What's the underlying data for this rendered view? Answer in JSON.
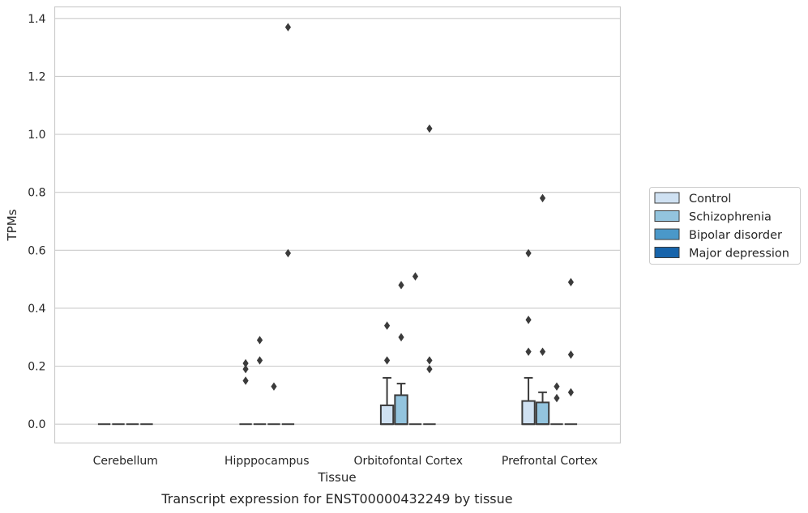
{
  "chart_data": {
    "type": "box",
    "caption": "Transcript expression for ENST00000432249 by tissue",
    "xlabel": "Tissue",
    "ylabel": "TPMs",
    "ylim": [
      -0.065,
      1.44
    ],
    "yticks": [
      0.0,
      0.2,
      0.4,
      0.6,
      0.8,
      1.0,
      1.2,
      1.4
    ],
    "ytick_labels": [
      "0.0",
      "0.2",
      "0.4",
      "0.6",
      "0.8",
      "1.0",
      "1.2",
      "1.4"
    ],
    "grid": true,
    "legend_position": "right",
    "categories": [
      "Cerebellum",
      "Hipppocampus",
      "Orbitofontal Cortex",
      "Prefrontal Cortex"
    ],
    "series": [
      {
        "name": "Control",
        "color": "#cfe1f2",
        "boxes": [
          {
            "q1": 0,
            "median": 0,
            "q3": 0,
            "whisker_low": 0,
            "whisker_high": 0,
            "outliers": []
          },
          {
            "q1": 0,
            "median": 0,
            "q3": 0,
            "whisker_low": 0,
            "whisker_high": 0,
            "outliers": [
              0.15,
              0.19,
              0.21
            ]
          },
          {
            "q1": 0,
            "median": 0,
            "q3": 0.065,
            "whisker_low": 0,
            "whisker_high": 0.16,
            "outliers": [
              0.22,
              0.34
            ]
          },
          {
            "q1": 0,
            "median": 0,
            "q3": 0.08,
            "whisker_low": 0,
            "whisker_high": 0.16,
            "outliers": [
              0.25,
              0.36,
              0.59
            ]
          }
        ]
      },
      {
        "name": "Schizophrenia",
        "color": "#93c4de",
        "boxes": [
          {
            "q1": 0,
            "median": 0,
            "q3": 0,
            "whisker_low": 0,
            "whisker_high": 0,
            "outliers": []
          },
          {
            "q1": 0,
            "median": 0,
            "q3": 0,
            "whisker_low": 0,
            "whisker_high": 0,
            "outliers": [
              0.22,
              0.29
            ]
          },
          {
            "q1": 0,
            "median": 0,
            "q3": 0.1,
            "whisker_low": 0,
            "whisker_high": 0.14,
            "outliers": [
              0.3,
              0.48
            ]
          },
          {
            "q1": 0,
            "median": 0,
            "q3": 0.075,
            "whisker_low": 0,
            "whisker_high": 0.11,
            "outliers": [
              0.25,
              0.78
            ]
          }
        ]
      },
      {
        "name": "Bipolar disorder",
        "color": "#4a98c9",
        "boxes": [
          {
            "q1": 0,
            "median": 0,
            "q3": 0,
            "whisker_low": 0,
            "whisker_high": 0,
            "outliers": []
          },
          {
            "q1": 0,
            "median": 0,
            "q3": 0,
            "whisker_low": 0,
            "whisker_high": 0,
            "outliers": [
              0.13
            ]
          },
          {
            "q1": 0,
            "median": 0,
            "q3": 0,
            "whisker_low": 0,
            "whisker_high": 0,
            "outliers": [
              0.51
            ]
          },
          {
            "q1": 0,
            "median": 0,
            "q3": 0,
            "whisker_low": 0,
            "whisker_high": 0,
            "outliers": [
              0.09,
              0.13
            ]
          }
        ]
      },
      {
        "name": "Major depression",
        "color": "#1764ab",
        "boxes": [
          {
            "q1": 0,
            "median": 0,
            "q3": 0,
            "whisker_low": 0,
            "whisker_high": 0,
            "outliers": []
          },
          {
            "q1": 0,
            "median": 0,
            "q3": 0,
            "whisker_low": 0,
            "whisker_high": 0,
            "outliers": [
              0.59,
              1.37
            ]
          },
          {
            "q1": 0,
            "median": 0,
            "q3": 0,
            "whisker_low": 0,
            "whisker_high": 0,
            "outliers": [
              0.19,
              0.22,
              1.02
            ]
          },
          {
            "q1": 0,
            "median": 0,
            "q3": 0,
            "whisker_low": 0,
            "whisker_high": 0,
            "outliers": [
              0.11,
              0.24,
              0.49
            ]
          }
        ]
      }
    ]
  }
}
